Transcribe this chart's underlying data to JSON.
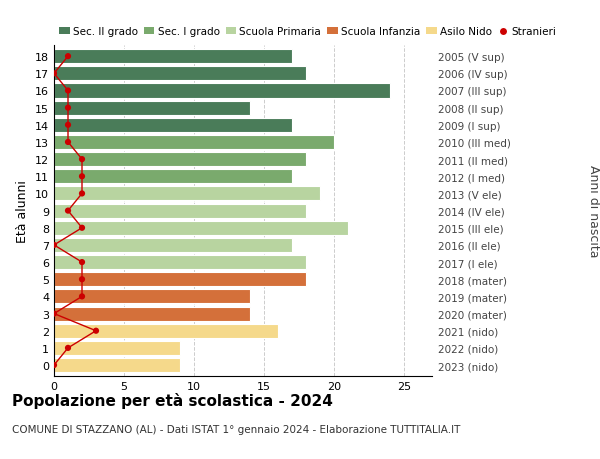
{
  "ages": [
    18,
    17,
    16,
    15,
    14,
    13,
    12,
    11,
    10,
    9,
    8,
    7,
    6,
    5,
    4,
    3,
    2,
    1,
    0
  ],
  "right_labels": [
    "2005 (V sup)",
    "2006 (IV sup)",
    "2007 (III sup)",
    "2008 (II sup)",
    "2009 (I sup)",
    "2010 (III med)",
    "2011 (II med)",
    "2012 (I med)",
    "2013 (V ele)",
    "2014 (IV ele)",
    "2015 (III ele)",
    "2016 (II ele)",
    "2017 (I ele)",
    "2018 (mater)",
    "2019 (mater)",
    "2020 (mater)",
    "2021 (nido)",
    "2022 (nido)",
    "2023 (nido)"
  ],
  "bar_values": [
    17,
    18,
    24,
    14,
    17,
    20,
    18,
    17,
    19,
    18,
    21,
    17,
    18,
    18,
    14,
    14,
    16,
    9,
    9
  ],
  "bar_colors": [
    "#4a7c59",
    "#4a7c59",
    "#4a7c59",
    "#4a7c59",
    "#4a7c59",
    "#7aaa6d",
    "#7aaa6d",
    "#7aaa6d",
    "#b8d4a0",
    "#b8d4a0",
    "#b8d4a0",
    "#b8d4a0",
    "#b8d4a0",
    "#d4703a",
    "#d4703a",
    "#d4703a",
    "#f5d98b",
    "#f5d98b",
    "#f5d98b"
  ],
  "stranieri_values": [
    1,
    0,
    1,
    1,
    1,
    1,
    2,
    2,
    2,
    1,
    2,
    0,
    2,
    2,
    2,
    0,
    3,
    1,
    0
  ],
  "title": "Popolazione per età scolastica - 2024",
  "subtitle": "COMUNE DI STAZZANO (AL) - Dati ISTAT 1° gennaio 2024 - Elaborazione TUTTITALIA.IT",
  "ylabel": "Età alunni",
  "right_ylabel": "Anni di nascita",
  "xlim": [
    0,
    27
  ],
  "xticks": [
    0,
    5,
    10,
    15,
    20,
    25
  ],
  "legend_labels": [
    "Sec. II grado",
    "Sec. I grado",
    "Scuola Primaria",
    "Scuola Infanzia",
    "Asilo Nido",
    "Stranieri"
  ],
  "legend_colors": [
    "#4a7c59",
    "#7aaa6d",
    "#b8d4a0",
    "#d4703a",
    "#f5d98b",
    "#cc0000"
  ],
  "bar_height": 0.82,
  "figsize": [
    6.0,
    4.6
  ],
  "dpi": 100,
  "bg_color": "#ffffff",
  "grid_color": "#cccccc",
  "stranieri_color": "#cc0000"
}
